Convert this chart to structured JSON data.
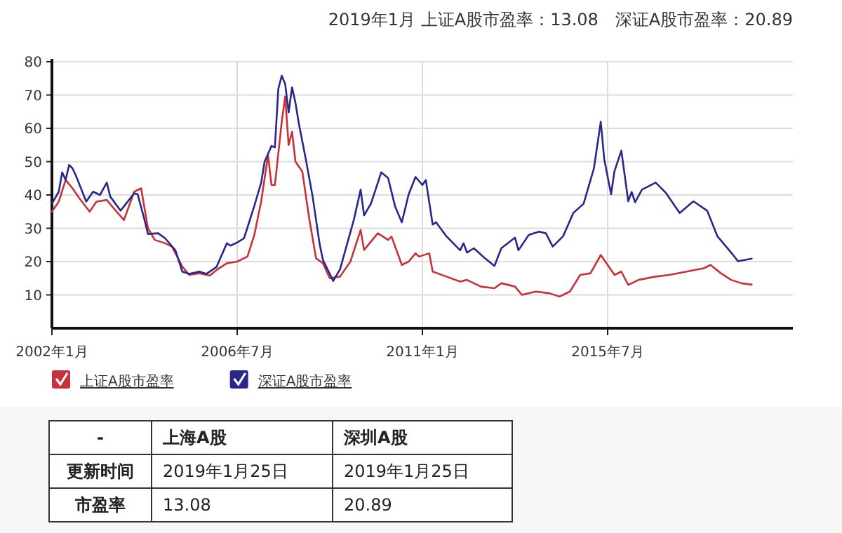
{
  "chart_data": {
    "type": "line",
    "title": "2019年1月 上证A股市盈率：13.08　深证A股市盈率：20.89",
    "xlim": [
      "2002-01",
      "2020-01"
    ],
    "ylim": [
      0,
      80
    ],
    "xticks": [
      {
        "value": "2002-01",
        "label": "2002年1月"
      },
      {
        "value": "2006-07",
        "label": "2006年7月"
      },
      {
        "value": "2011-01",
        "label": "2011年1月"
      },
      {
        "value": "2015-07",
        "label": "2015年7月"
      }
    ],
    "yticks": [
      10,
      20,
      30,
      40,
      50,
      60,
      70,
      80
    ],
    "grid": true,
    "legend": "bottom",
    "series": [
      {
        "name": "上证A股市盈率",
        "color": "#c8303a",
        "x": [
          "2002-01",
          "2002-03",
          "2002-05",
          "2002-07",
          "2002-09",
          "2002-12",
          "2003-02",
          "2003-05",
          "2003-07",
          "2003-10",
          "2004-01",
          "2004-03",
          "2004-05",
          "2004-07",
          "2004-10",
          "2004-12",
          "2005-03",
          "2005-05",
          "2005-08",
          "2005-11",
          "2006-01",
          "2006-04",
          "2006-07",
          "2006-10",
          "2006-12",
          "2007-02",
          "2007-04",
          "2007-05",
          "2007-06",
          "2007-08",
          "2007-09",
          "2007-10",
          "2007-11",
          "2007-12",
          "2008-02",
          "2008-04",
          "2008-06",
          "2008-08",
          "2008-10",
          "2009-01",
          "2009-04",
          "2009-07",
          "2009-08",
          "2009-12",
          "2010-03",
          "2010-04",
          "2010-07",
          "2010-09",
          "2010-11",
          "2010-12",
          "2011-03",
          "2011-04",
          "2011-08",
          "2011-12",
          "2012-02",
          "2012-06",
          "2012-10",
          "2012-12",
          "2013-04",
          "2013-06",
          "2013-10",
          "2014-02",
          "2014-05",
          "2014-08",
          "2014-11",
          "2015-02",
          "2015-05",
          "2015-07",
          "2015-09",
          "2015-11",
          "2016-01",
          "2016-04",
          "2016-09",
          "2017-01",
          "2017-06",
          "2017-11",
          "2018-01",
          "2018-04",
          "2018-07",
          "2018-10",
          "2019-01"
        ],
        "values": [
          35,
          38,
          44.5,
          42,
          39,
          35,
          38,
          38.5,
          36,
          32.5,
          41,
          42,
          30,
          26.5,
          25.5,
          24.5,
          18.5,
          16,
          16.5,
          15.8,
          17.5,
          19.5,
          20,
          21.5,
          28,
          38,
          52,
          43,
          43,
          62,
          69.5,
          55,
          59,
          50,
          47,
          33,
          21,
          19.5,
          15,
          15.5,
          20,
          29.5,
          23.5,
          28.5,
          26.5,
          27.5,
          19,
          20,
          22.5,
          21.5,
          22.5,
          17,
          15.5,
          14,
          14.5,
          12.5,
          12,
          13.5,
          12.5,
          10,
          11,
          10.5,
          9.5,
          11,
          16,
          16.5,
          22,
          19,
          16,
          17,
          13,
          14.5,
          15.5,
          16,
          17,
          18,
          19,
          16.5,
          14.5,
          13.5,
          13.08
        ]
      },
      {
        "name": "深证A股市盈率",
        "color": "#27288a",
        "x": [
          "2002-01",
          "2002-03",
          "2002-04",
          "2002-05",
          "2002-06",
          "2002-07",
          "2002-08",
          "2002-11",
          "2003-01",
          "2003-03",
          "2003-05",
          "2003-06",
          "2003-09",
          "2004-01",
          "2004-02",
          "2004-04",
          "2004-05",
          "2004-08",
          "2004-10",
          "2005-01",
          "2005-03",
          "2005-05",
          "2005-08",
          "2005-10",
          "2006-01",
          "2006-04",
          "2006-05",
          "2006-07",
          "2006-09",
          "2006-12",
          "2007-02",
          "2007-03",
          "2007-05",
          "2007-06",
          "2007-07",
          "2007-08",
          "2007-09",
          "2007-10",
          "2007-11",
          "2007-12",
          "2008-01",
          "2008-03",
          "2008-05",
          "2008-07",
          "2008-08",
          "2008-11",
          "2009-01",
          "2009-05",
          "2009-07",
          "2009-08",
          "2009-10",
          "2010-01",
          "2010-03",
          "2010-05",
          "2010-07",
          "2010-09",
          "2010-11",
          "2011-01",
          "2011-02",
          "2011-04",
          "2011-05",
          "2011-08",
          "2011-12",
          "2012-01",
          "2012-02",
          "2012-04",
          "2012-07",
          "2012-10",
          "2012-12",
          "2013-04",
          "2013-05",
          "2013-08",
          "2013-11",
          "2014-01",
          "2014-03",
          "2014-06",
          "2014-09",
          "2014-12",
          "2015-03",
          "2015-05",
          "2015-06",
          "2015-08",
          "2015-09",
          "2015-11",
          "2016-01",
          "2016-02",
          "2016-03",
          "2016-05",
          "2016-09",
          "2016-12",
          "2017-04",
          "2017-08",
          "2017-12",
          "2018-03",
          "2018-07",
          "2018-09",
          "2019-01"
        ],
        "values": [
          37.4,
          41,
          46.8,
          44.5,
          49,
          48,
          45.8,
          38,
          41,
          40,
          43.7,
          39.5,
          35.3,
          40.5,
          40.2,
          32.5,
          28.3,
          28.5,
          27,
          23.4,
          17,
          16.3,
          17,
          16.3,
          18.4,
          25.5,
          24.8,
          25.7,
          27,
          36.7,
          43.7,
          50,
          54.7,
          54.3,
          71.9,
          75.8,
          73.3,
          64.8,
          72.3,
          67.6,
          61.3,
          50.8,
          39.5,
          25.5,
          20.5,
          14.2,
          17.7,
          32.5,
          41.6,
          33.9,
          37.4,
          46.8,
          45.1,
          36.7,
          31.8,
          40.2,
          45.4,
          43,
          44.5,
          31.1,
          31.8,
          27.6,
          23.4,
          25.5,
          22.7,
          24,
          21.2,
          18.7,
          24,
          27.2,
          23.4,
          28,
          29,
          28.5,
          24.5,
          27.6,
          34.6,
          37.4,
          48,
          62,
          50.8,
          40.2,
          47.2,
          53.3,
          38.1,
          40.9,
          37.8,
          41.6,
          43.7,
          40.6,
          34.6,
          38.1,
          35.3,
          27.6,
          22.7,
          20.1,
          20.89
        ]
      }
    ],
    "annotations": [
      "-",
      "上海A股",
      "深圳A股",
      "更新时间",
      "2019年1月25日",
      "2019年1月25日",
      "市盈率",
      "13.08",
      "20.89"
    ]
  }
}
